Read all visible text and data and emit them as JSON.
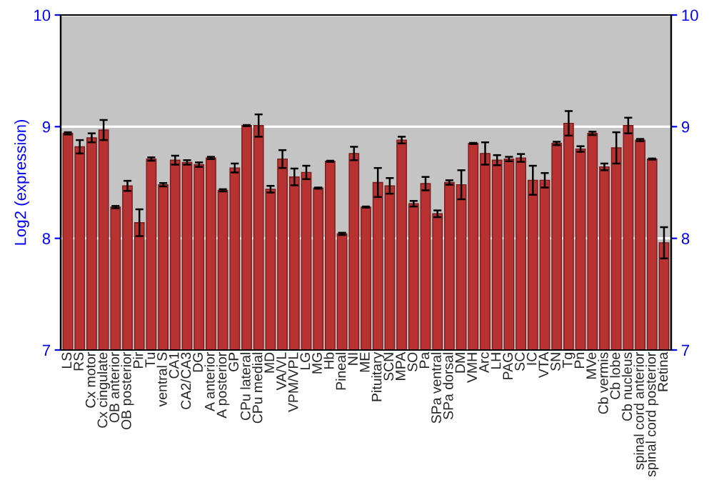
{
  "chart_data": {
    "type": "bar",
    "ylabel": "Log2 (expression)",
    "categories": [
      "LS",
      "RS",
      "Cx motor",
      "Cx cingulate",
      "OB anterior",
      "OB posterior",
      "Pir",
      "Tu",
      "ventral S",
      "CA1",
      "CA2/CA3",
      "DG",
      "A anterior",
      "A posterior",
      "GP",
      "CPu lateral",
      "CPu medial",
      "MD",
      "VA/VL",
      "VPM/VPL",
      "LG",
      "MG",
      "Hb",
      "Pineal",
      "NI",
      "ME",
      "Pituitary",
      "SCN",
      "MPA",
      "SO",
      "Pa",
      "SPa ventral",
      "SPa dorsal",
      "DM",
      "VMH",
      "Arc",
      "LH",
      "PAG",
      "SC",
      "IC",
      "VTA",
      "SN",
      "Tg",
      "Pn",
      "MVe",
      "Cb vermis",
      "Cb lobe",
      "Cb nucleus",
      "spinal cord anterior",
      "spinal cord posterior",
      "Retina"
    ],
    "values": [
      8.94,
      8.82,
      8.9,
      8.97,
      8.28,
      8.47,
      8.14,
      8.71,
      8.48,
      8.7,
      8.68,
      8.66,
      8.72,
      8.43,
      8.63,
      9.01,
      9.01,
      8.44,
      8.71,
      8.55,
      8.59,
      8.45,
      8.69,
      8.04,
      8.76,
      8.28,
      8.5,
      8.47,
      8.88,
      8.31,
      8.49,
      8.22,
      8.5,
      8.48,
      8.85,
      8.76,
      8.7,
      8.71,
      8.72,
      8.52,
      8.52,
      8.85,
      9.03,
      8.8,
      8.94,
      8.64,
      8.81,
      9.01,
      8.88,
      8.71,
      7.96
    ],
    "errors": [
      0.01,
      0.06,
      0.04,
      0.09,
      0.01,
      0.045,
      0.12,
      0.015,
      0.015,
      0.04,
      0.02,
      0.02,
      0.01,
      0.01,
      0.04,
      0.005,
      0.1,
      0.03,
      0.08,
      0.075,
      0.06,
      0.005,
      0.005,
      0.01,
      0.06,
      0.005,
      0.13,
      0.07,
      0.03,
      0.025,
      0.06,
      0.03,
      0.02,
      0.13,
      0.005,
      0.1,
      0.045,
      0.02,
      0.035,
      0.13,
      0.065,
      0.015,
      0.11,
      0.025,
      0.015,
      0.03,
      0.14,
      0.07,
      0.01,
      0.005,
      0.14
    ],
    "color": "#b83232",
    "ylim": [
      7,
      10
    ],
    "yticks": [
      7,
      8,
      9,
      10
    ],
    "y2lim": [
      7,
      10
    ],
    "y2ticks": [
      7,
      8,
      9,
      10
    ],
    "grid": "y"
  }
}
